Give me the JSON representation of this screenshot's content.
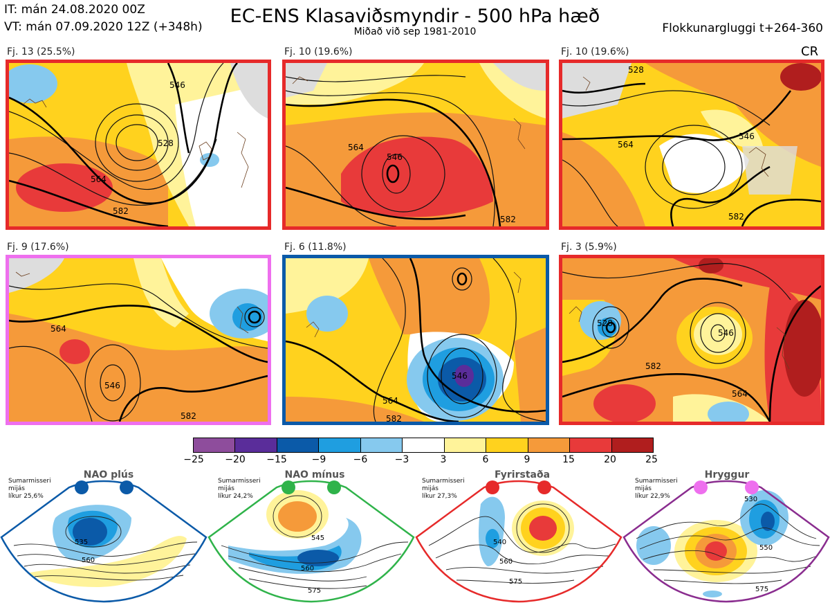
{
  "header": {
    "it_line": "IT: mán 24.08.2020 00Z",
    "vt_line": "VT: mán 07.09.2020 12Z  (+348h)",
    "title": "EC-ENS Klasaviðsmyndir - 500 hPa hæð",
    "subtitle": "Miðað við sep 1981-2010",
    "window": "Flokkunargluggi t+264-360",
    "cr": "CR"
  },
  "colors": {
    "red_frame": "#e62a2a",
    "pink_frame": "#ee6fee",
    "blue_frame": "#0b5aa8",
    "green_frame": "#2fb34a",
    "purple_frame": "#8a2d8f"
  },
  "clusters": [
    {
      "label": "Fj. 13 (25.5%)",
      "frame": "red",
      "contours": [
        "546",
        "564",
        "582",
        "528"
      ]
    },
    {
      "label": "Fj. 10 (19.6%)",
      "frame": "red",
      "contours": [
        "546",
        "564",
        "582"
      ]
    },
    {
      "label": "Fj. 10 (19.6%)",
      "frame": "red",
      "contours": [
        "528",
        "564",
        "582",
        "546"
      ]
    },
    {
      "label": "Fj. 9 (17.6%)",
      "frame": "pink",
      "contours": [
        "546",
        "564",
        "582"
      ]
    },
    {
      "label": "Fj. 6 (11.8%)",
      "frame": "blue",
      "contours": [
        "546",
        "564",
        "582"
      ]
    },
    {
      "label": "Fj. 3 (5.9%)",
      "frame": "red",
      "contours": [
        "528",
        "546",
        "564",
        "582"
      ]
    }
  ],
  "colorbar": {
    "ticks": [
      "−25",
      "−20",
      "−15",
      "−9",
      "−6",
      "−3",
      "3",
      "6",
      "9",
      "15",
      "20",
      "25"
    ],
    "colors": [
      "#8e4d9c",
      "#5a2d9a",
      "#0b5aa8",
      "#1f9ee0",
      "#86c9ee",
      "#ffffff",
      "#fff39a",
      "#ffd21e",
      "#f59a3a",
      "#e83a3a",
      "#b01e1e"
    ]
  },
  "regimes": [
    {
      "name": "NAO plús",
      "info": [
        "Sumarmisseri",
        "mijás",
        "líkur 25,6%"
      ],
      "dot_color": "#0b5aa8",
      "frame": "#0b5aa8",
      "contours": [
        "535",
        "560"
      ]
    },
    {
      "name": "NAO mínus",
      "info": [
        "Sumarmisseri",
        "mijás",
        "líkur 24,2%"
      ],
      "dot_color": "#2fb34a",
      "frame": "#2fb34a",
      "contours": [
        "545",
        "560",
        "575"
      ]
    },
    {
      "name": "Fyrirstaða",
      "info": [
        "Sumarmisseri",
        "mijás",
        "líkur 27,3%"
      ],
      "dot_color": "#e62a2a",
      "frame": "#e62a2a",
      "contours": [
        "540",
        "560",
        "575"
      ]
    },
    {
      "name": "Hryggur",
      "info": [
        "Sumarmisseri",
        "mijás",
        "líkur 22,9%"
      ],
      "dot_color": "#ee6fee",
      "frame": "#8a2d8f",
      "contours": [
        "530",
        "550",
        "575"
      ]
    }
  ]
}
